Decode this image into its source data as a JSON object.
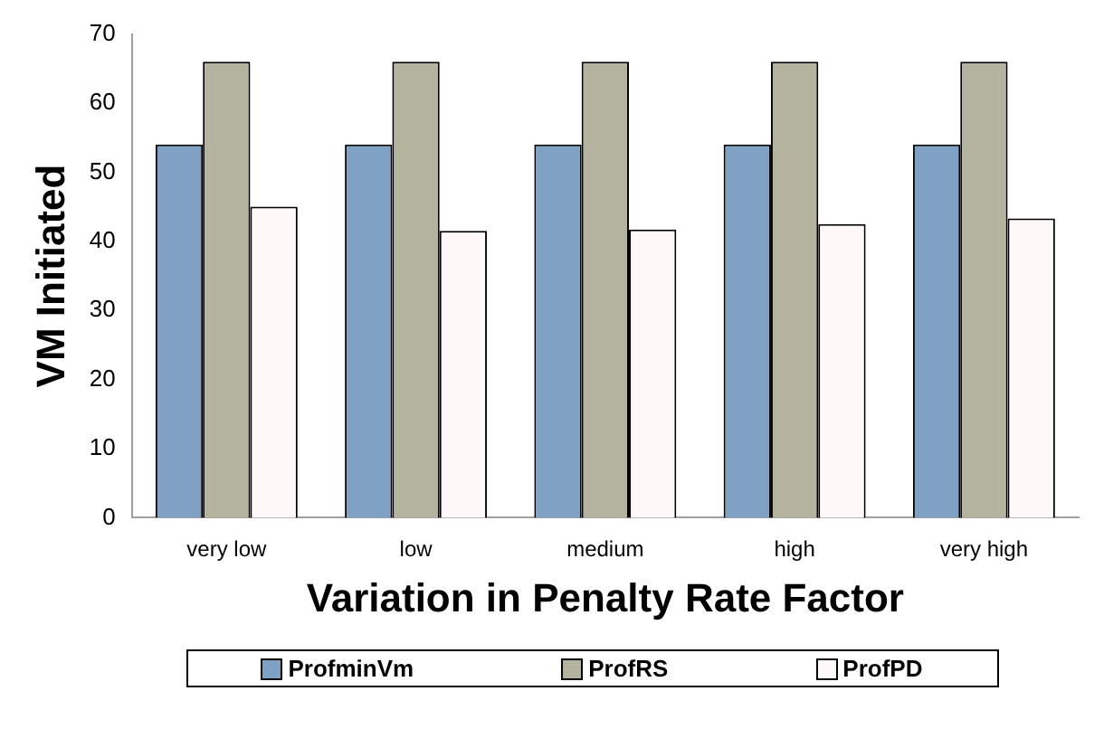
{
  "chart_data": {
    "type": "bar",
    "xlabel": "Variation in Penalty Rate Factor",
    "ylabel": "VM Initiated",
    "categories": [
      "very low",
      "low",
      "medium",
      "high",
      "very high"
    ],
    "series": [
      {
        "name": "ProfminVm",
        "color": "#7ea1c4",
        "values": [
          54,
          54,
          54,
          54,
          54
        ]
      },
      {
        "name": "ProfRS",
        "color": "#b4b49e",
        "values": [
          66,
          66,
          66,
          66,
          66
        ]
      },
      {
        "name": "ProfPD",
        "color": "#fff8f8",
        "values": [
          45,
          41.5,
          41.7,
          42.5,
          43.3
        ]
      }
    ],
    "ylim": [
      0,
      70
    ],
    "yticks": [
      0,
      10,
      20,
      30,
      40,
      50,
      60,
      70
    ],
    "grid": false,
    "legend": "bottom"
  }
}
